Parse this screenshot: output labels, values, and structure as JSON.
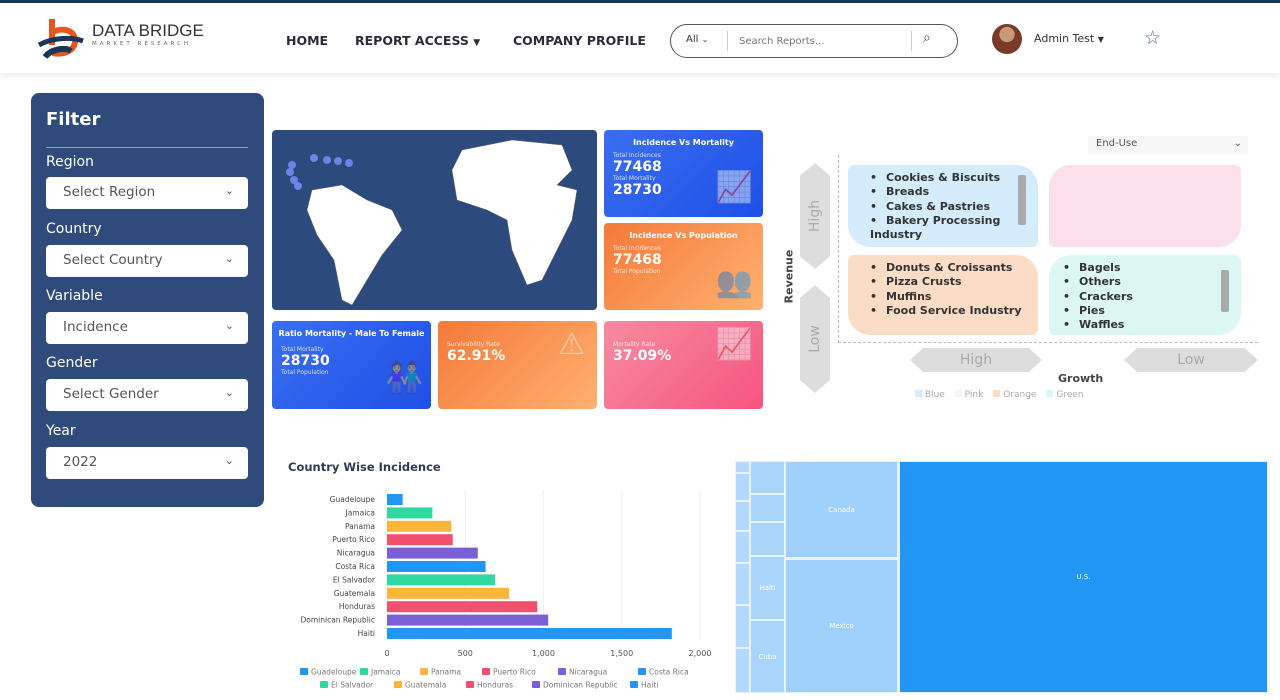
{
  "header": {
    "logo_text": "DATA BRIDGE",
    "logo_sub": "MARKET RESEARCH",
    "nav": [
      "HOME",
      "REPORT ACCESS",
      "COMPANY PROFILE"
    ],
    "search_scope": "All",
    "search_placeholder": "Search Reports...",
    "user": "Admin Test"
  },
  "filter": {
    "title": "Filter",
    "fields": [
      {
        "label": "Region",
        "value": "Select Region"
      },
      {
        "label": "Country",
        "value": "Select Country"
      },
      {
        "label": "Variable",
        "value": "Incidence"
      },
      {
        "label": "Gender",
        "value": "Select Gender"
      },
      {
        "label": "Year",
        "value": "2022"
      }
    ]
  },
  "cards": {
    "inc_mort": {
      "title": "Incidence Vs Mortality",
      "l1": "Total Incidences",
      "v1": "77468",
      "l2": "Total Mortality",
      "v2": "28730"
    },
    "inc_pop": {
      "title": "Incidence Vs Population",
      "l1": "Total Incidences",
      "v1": "77468",
      "l2": "Total Population"
    },
    "ratio": {
      "title": "Ratio Mortality - Male To Female",
      "l1": "Total Mortality",
      "v1": "28730",
      "l2": "Total Population"
    },
    "surv": {
      "l1": "Survivability Rate",
      "v1": "62.91%"
    },
    "mort": {
      "l1": "Mortality Rate",
      "v1": "37.09%"
    }
  },
  "quadrant": {
    "dropdown": "End-Use",
    "y_label": "Revenue",
    "x_label": "Growth",
    "high": "High",
    "low": "Low",
    "blue": [
      "Cookies & Biscuits",
      "Breads",
      "Cakes & Pastries",
      "Bakery Processing Industry"
    ],
    "orange": [
      "Donuts & Croissants",
      "Pizza Crusts",
      "Muffins",
      "Food Service Industry"
    ],
    "green": [
      "Bagels",
      "Others",
      "Crackers",
      "Pies",
      "Waffles"
    ],
    "legend": [
      "Blue",
      "Pink",
      "Orange",
      "Green"
    ],
    "colors": {
      "blue": "#d4ecfb",
      "pink": "#fbe0ec",
      "orange": "#fbdcc6",
      "green": "#dcf7f2"
    }
  },
  "chart_data": {
    "type": "bar",
    "orientation": "horizontal",
    "title": "Country Wise Incidence",
    "categories": [
      "Guadeloupe",
      "Jamaica",
      "Panama",
      "Puerto Rico",
      "Nicaragua",
      "Costa Rica",
      "El Salvador",
      "Guatemala",
      "Honduras",
      "Dominican Republic",
      "Haiti"
    ],
    "values": [
      100,
      290,
      410,
      420,
      580,
      630,
      690,
      780,
      960,
      1030,
      1820
    ],
    "colors": [
      "#2196f3",
      "#2ed8a0",
      "#fbb53a",
      "#f2506e",
      "#7b5fd6",
      "#2196f3",
      "#2ed8a0",
      "#fbb53a",
      "#f2506e",
      "#7b5fd6",
      "#2196f3"
    ],
    "xlim": [
      0,
      2000
    ],
    "xticks": [
      "0",
      "500",
      "1,000",
      "1,500",
      "2,000"
    ],
    "legend": "bottom"
  },
  "treemap": {
    "labels": {
      "us": "U.S.",
      "canada": "Canada",
      "mexico": "Mexico",
      "haiti": "Haiti",
      "cuba": "Cuba"
    }
  }
}
